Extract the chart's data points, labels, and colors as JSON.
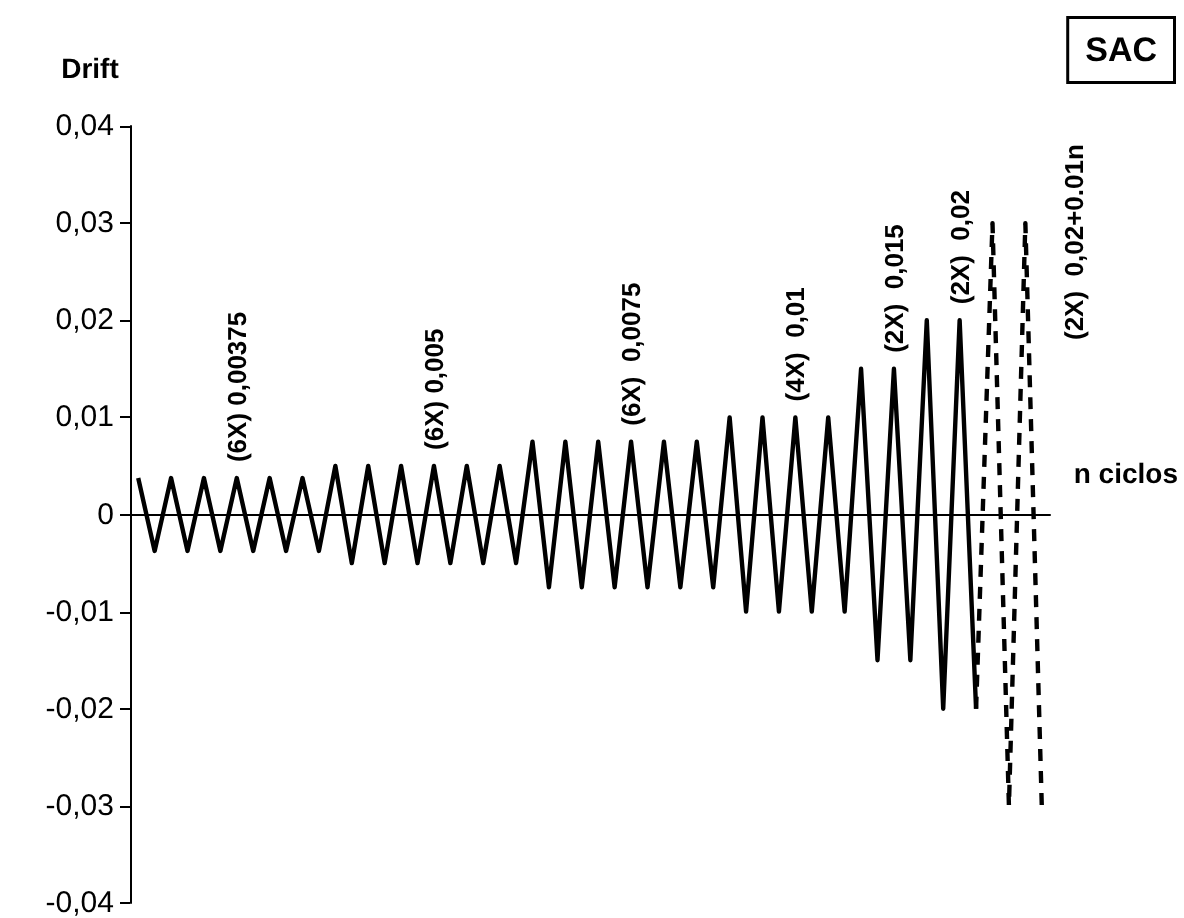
{
  "chart_data": {
    "type": "line",
    "ylabel": "Drift",
    "xlabel": "n ciclos",
    "tick_labels": "y",
    "categories": [
      null,
      null,
      null,
      null,
      null,
      null,
      null,
      null,
      null,
      null,
      null,
      null,
      null,
      null,
      null,
      null,
      null,
      null,
      null,
      null,
      null,
      null,
      null,
      null,
      null,
      null,
      null,
      null,
      null,
      null,
      null,
      null,
      null,
      null,
      null,
      null,
      null,
      null,
      null,
      null,
      null,
      null,
      null,
      null,
      null,
      null,
      null,
      null,
      null,
      null,
      null,
      null,
      null,
      null,
      null,
      null
    ],
    "ylim": [
      -0.04,
      0.04
    ],
    "yticks": [
      {
        "value": -0.04,
        "label": "-0,04"
      },
      {
        "value": -0.03,
        "label": "-0,03"
      },
      {
        "value": -0.02,
        "label": "-0,02"
      },
      {
        "value": -0.01,
        "label": "-0,01"
      },
      {
        "value": 0,
        "label": "0"
      },
      {
        "value": 0.01,
        "label": "0,01"
      },
      {
        "value": 0.02,
        "label": "0,02"
      },
      {
        "value": 0.03,
        "label": "0,03"
      },
      {
        "value": 0.04,
        "label": "0,04"
      }
    ],
    "series": [
      {
        "color": "#000000",
        "line_style": "solid",
        "values": [
          0.00375,
          -0.00375,
          0.00375,
          -0.00375,
          0.00375,
          -0.00375,
          0.00375,
          -0.00375,
          0.00375,
          -0.00375,
          0.00375,
          -0.00375,
          0.005,
          -0.005,
          0.005,
          -0.005,
          0.005,
          -0.005,
          0.005,
          -0.005,
          0.005,
          -0.005,
          0.005,
          -0.005,
          0.0075,
          -0.0075,
          0.0075,
          -0.0075,
          0.0075,
          -0.0075,
          0.0075,
          -0.0075,
          0.0075,
          -0.0075,
          0.0075,
          -0.0075,
          0.01,
          -0.01,
          0.01,
          -0.01,
          0.01,
          -0.01,
          0.01,
          -0.01,
          0.015,
          -0.015,
          0.015,
          -0.015,
          0.02,
          -0.02,
          0.02,
          -0.02,
          null,
          null,
          null,
          null
        ]
      },
      {
        "color": "#000000",
        "line_style": "dashed",
        "values": [
          null,
          null,
          null,
          null,
          null,
          null,
          null,
          null,
          null,
          null,
          null,
          null,
          null,
          null,
          null,
          null,
          null,
          null,
          null,
          null,
          null,
          null,
          null,
          null,
          null,
          null,
          null,
          null,
          null,
          null,
          null,
          null,
          null,
          null,
          null,
          null,
          null,
          null,
          null,
          null,
          null,
          null,
          null,
          null,
          null,
          null,
          null,
          null,
          null,
          null,
          null,
          -0.02,
          0.03,
          -0.03,
          0.03,
          -0.03
        ]
      }
    ],
    "annotations": [
      "(6X) 0,00375",
      "(6X) 0,005",
      "(6X)  0,0075",
      "(4X)  0,01",
      "(2X)  0,015",
      "(2X)  0,02",
      "(2X)  0,02+0.01n",
      "SAC"
    ]
  }
}
